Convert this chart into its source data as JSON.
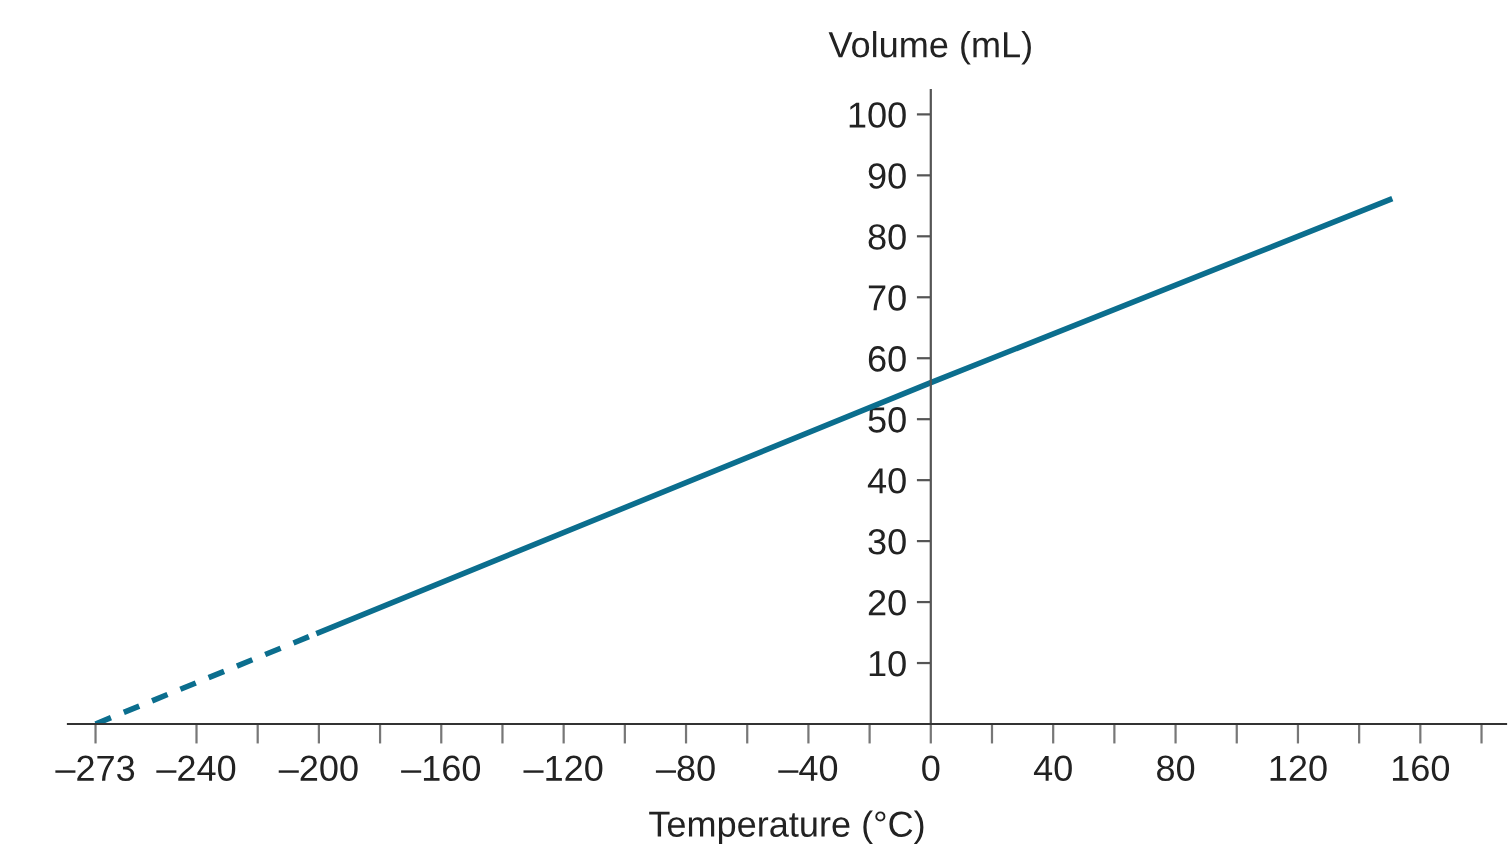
{
  "chart_data": {
    "type": "line",
    "xlabel": "Temperature (°C)",
    "ylabel": "Volume (mL)",
    "series": [
      {
        "x": [
          -273,
          -200
        ],
        "values": [
          0,
          15
        ],
        "color": "#0b6e8e",
        "line_style": "dashed"
      },
      {
        "x": [
          -200,
          0,
          150
        ],
        "values": [
          15,
          56,
          86
        ],
        "color": "#0b6e8e",
        "line_style": "solid"
      }
    ],
    "xlim": [
      -282,
      188
    ],
    "ylim": [
      0,
      104
    ],
    "xticks": [
      {
        "value": -273,
        "label": "–273"
      },
      {
        "value": -240,
        "label": "–240"
      },
      {
        "value": -220,
        "label": null
      },
      {
        "value": -200,
        "label": "–200"
      },
      {
        "value": -180,
        "label": null
      },
      {
        "value": -160,
        "label": "–160"
      },
      {
        "value": -140,
        "label": null
      },
      {
        "value": -120,
        "label": "–120"
      },
      {
        "value": -100,
        "label": null
      },
      {
        "value": -80,
        "label": "–80"
      },
      {
        "value": -60,
        "label": null
      },
      {
        "value": -40,
        "label": "–40"
      },
      {
        "value": -20,
        "label": null
      },
      0,
      {
        "value": 20,
        "label": null
      },
      40,
      {
        "value": 60,
        "label": null
      },
      80,
      {
        "value": 100,
        "label": null
      },
      120,
      {
        "value": 140,
        "label": null
      },
      160,
      {
        "value": 180,
        "label": null
      }
    ],
    "yticks": [
      10,
      20,
      30,
      40,
      50,
      60,
      70,
      80,
      90,
      100
    ],
    "grid": false,
    "legend": false,
    "marker": "none"
  }
}
